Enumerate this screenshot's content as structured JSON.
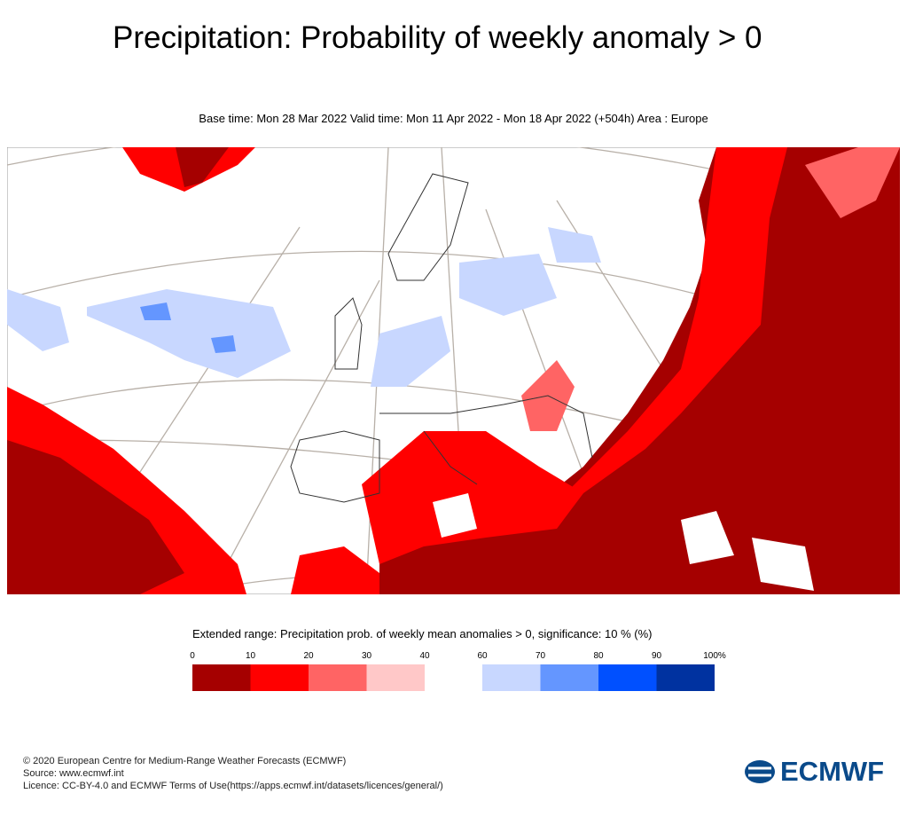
{
  "header": {
    "title": "Precipitation: Probability of weekly anomaly > 0",
    "subtitle": "Base time: Mon 28 Mar 2022 Valid time: Mon 11 Apr 2022 - Mon 18 Apr 2022 (+504h) Area : Europe"
  },
  "legend": {
    "title": "Extended range: Precipitation prob. of weekly mean anomalies > 0, significance: 10 % (%)",
    "groups": [
      {
        "ticks": [
          0,
          10,
          20,
          30,
          40
        ],
        "colors": [
          "#a50000",
          "#ff0000",
          "#ff6464",
          "#ffc8c8"
        ]
      },
      {
        "ticks": [
          60,
          70,
          80,
          90,
          {
            "value": 100,
            "label": "100%"
          }
        ],
        "colors": [
          "#c8d7ff",
          "#6496ff",
          "#0050ff",
          "#0032a0"
        ]
      }
    ]
  },
  "footer": {
    "lines": [
      "© 2020 European Centre for Medium-Range Weather Forecasts (ECMWF)",
      "Source: www.ecmwf.int",
      "Licence: CC-BY-4.0 and ECMWF Terms of Use(https://apps.ecmwf.int/datasets/licences/general/)"
    ],
    "logo": "ECMWF"
  }
}
